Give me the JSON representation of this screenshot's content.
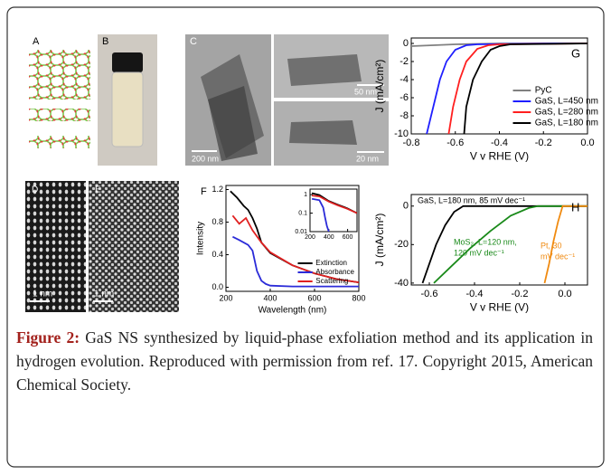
{
  "chart_data": [
    {
      "type": "line",
      "panel_label": "F",
      "xlabel": "Wavelength (nm)",
      "ylabel": "Intensity",
      "xlim": [
        200,
        800
      ],
      "xticks": [
        200,
        400,
        600,
        800
      ],
      "ylim": [
        -0.05,
        1.25
      ],
      "yticks": [
        {
          "value": 0,
          "label": "0.0"
        },
        0.4,
        0.8,
        1.2
      ],
      "legend": "lower right",
      "series": [
        {
          "name": "Extinction",
          "color": "#000000",
          "x": [
            220,
            250,
            280,
            300,
            320,
            340,
            360,
            400,
            500,
            600,
            700,
            800
          ],
          "values": [
            1.18,
            1.1,
            1.0,
            0.95,
            0.85,
            0.72,
            0.55,
            0.42,
            0.27,
            0.17,
            0.1,
            0.06
          ]
        },
        {
          "name": "Absorbance",
          "color": "#2b2bd8",
          "x": [
            230,
            260,
            300,
            320,
            340,
            360,
            380,
            400,
            500,
            800
          ],
          "values": [
            0.62,
            0.58,
            0.52,
            0.45,
            0.2,
            0.08,
            0.04,
            0.02,
            0.01,
            0.01
          ]
        },
        {
          "name": "Scattering",
          "color": "#e02020",
          "x": [
            230,
            260,
            290,
            320,
            360,
            400,
            500,
            600,
            700,
            800
          ],
          "values": [
            0.88,
            0.78,
            0.85,
            0.7,
            0.55,
            0.43,
            0.27,
            0.17,
            0.1,
            0.06
          ]
        }
      ],
      "inset": {
        "type": "line",
        "ylog": true,
        "xlim": [
          200,
          700
        ],
        "xticks": [
          200,
          400,
          600
        ],
        "ylim": [
          0.01,
          2
        ],
        "yticks": [
          1,
          0.1,
          0.01
        ],
        "series": [
          {
            "color": "#000000",
            "x": [
              220,
              300,
              400,
              500,
              600,
              700
            ],
            "values": [
              1.2,
              0.95,
              0.45,
              0.28,
              0.18,
              0.1
            ]
          },
          {
            "color": "#2b2bd8",
            "x": [
              220,
              300,
              340,
              360,
              380,
              400
            ],
            "values": [
              0.6,
              0.5,
              0.2,
              0.06,
              0.02,
              0.01
            ]
          },
          {
            "color": "#e02020",
            "x": [
              220,
              300,
              400,
              500,
              600,
              700
            ],
            "values": [
              0.9,
              0.8,
              0.42,
              0.26,
              0.17,
              0.1
            ]
          }
        ]
      }
    },
    {
      "type": "line",
      "panel_label": "G",
      "xlabel": "V v RHE (V)",
      "ylabel": "J (mA/cm²)",
      "xlim": [
        -0.8,
        0.0
      ],
      "xticks": [
        -0.8,
        -0.6,
        -0.4,
        -0.2,
        {
          "value": 0,
          "label": "0.0"
        }
      ],
      "ylim": [
        -10,
        0.6
      ],
      "yticks": [
        0,
        -2,
        -4,
        -6,
        -8,
        -10
      ],
      "legend": "lower right",
      "series": [
        {
          "name": "PyC",
          "color": "#808080",
          "x": [
            -0.8,
            -0.7,
            -0.6,
            -0.5,
            -0.4,
            -0.2,
            0
          ],
          "values": [
            -0.3,
            -0.2,
            -0.1,
            -0.05,
            0,
            0,
            0
          ]
        },
        {
          "name": "GaS, L=450 nm",
          "color": "#1f1fff",
          "x": [
            -0.73,
            -0.7,
            -0.67,
            -0.64,
            -0.6,
            -0.55,
            -0.5,
            -0.2,
            0
          ],
          "values": [
            -10,
            -7,
            -4,
            -2,
            -0.7,
            -0.2,
            -0.1,
            0,
            0
          ]
        },
        {
          "name": "GaS, L=280 nm",
          "color": "#ff1f1f",
          "x": [
            -0.63,
            -0.61,
            -0.58,
            -0.55,
            -0.5,
            -0.45,
            -0.4,
            0
          ],
          "values": [
            -10,
            -7,
            -4,
            -2,
            -0.6,
            -0.2,
            -0.1,
            0
          ]
        },
        {
          "name": "GaS, L=180 nm",
          "color": "#000000",
          "x": [
            -0.56,
            -0.55,
            -0.52,
            -0.48,
            -0.44,
            -0.4,
            -0.35,
            0
          ],
          "values": [
            -10,
            -7,
            -4,
            -2,
            -0.7,
            -0.3,
            -0.1,
            0
          ]
        }
      ]
    },
    {
      "type": "line",
      "panel_label": "H",
      "xlabel": "V v RHE (V)",
      "ylabel": "J (mA/cm²)",
      "xlim": [
        -0.68,
        0.1
      ],
      "xticks": [
        -0.6,
        -0.4,
        -0.2,
        {
          "value": 0,
          "label": "0.0"
        }
      ],
      "ylim": [
        -41,
        6
      ],
      "yticks": [
        0,
        -20,
        -40
      ],
      "series": [
        {
          "label_lines": [
            "GaS, L=180 nm, 85 mV dec⁻¹"
          ],
          "color": "#000000",
          "x": [
            -0.63,
            -0.6,
            -0.57,
            -0.53,
            -0.49,
            -0.45,
            -0.4,
            0.1
          ],
          "values": [
            -40,
            -30,
            -20,
            -10,
            -3,
            0,
            0,
            0
          ]
        },
        {
          "label_lines": [
            "MoS₂, L=120 nm,",
            "120 mV dec⁻¹"
          ],
          "color": "#1a8a1a",
          "x": [
            -0.58,
            -0.5,
            -0.42,
            -0.33,
            -0.24,
            -0.16,
            -0.12,
            0.1
          ],
          "values": [
            -40,
            -31,
            -22,
            -13,
            -5,
            -1,
            0,
            0
          ]
        },
        {
          "label_lines": [
            "Pt, 30",
            "mV dec⁻¹"
          ],
          "color": "#f08a10",
          "x": [
            -0.09,
            -0.07,
            -0.05,
            -0.03,
            -0.01,
            0.1
          ],
          "values": [
            -40,
            -30,
            -18,
            -8,
            0,
            0
          ]
        }
      ]
    }
  ],
  "image_panels": [
    {
      "label": "A"
    },
    {
      "label": "B"
    },
    {
      "label": "C",
      "scale_bar": "200 nm"
    },
    {
      "scale_bar": "50 nm"
    },
    {
      "scale_bar": "20 nm"
    },
    {
      "label": "D",
      "scale_bar": "1 nm"
    },
    {
      "label": "E",
      "scale_bar": "1 nm"
    }
  ],
  "caption": {
    "label": "Figure 2:",
    "text": "GaS NS synthesized by liquid-phase exfoliation method and its application in hydrogen evolution. Reproduced with permission from ref. 17. Copyright 2015, American Chemical Society."
  }
}
